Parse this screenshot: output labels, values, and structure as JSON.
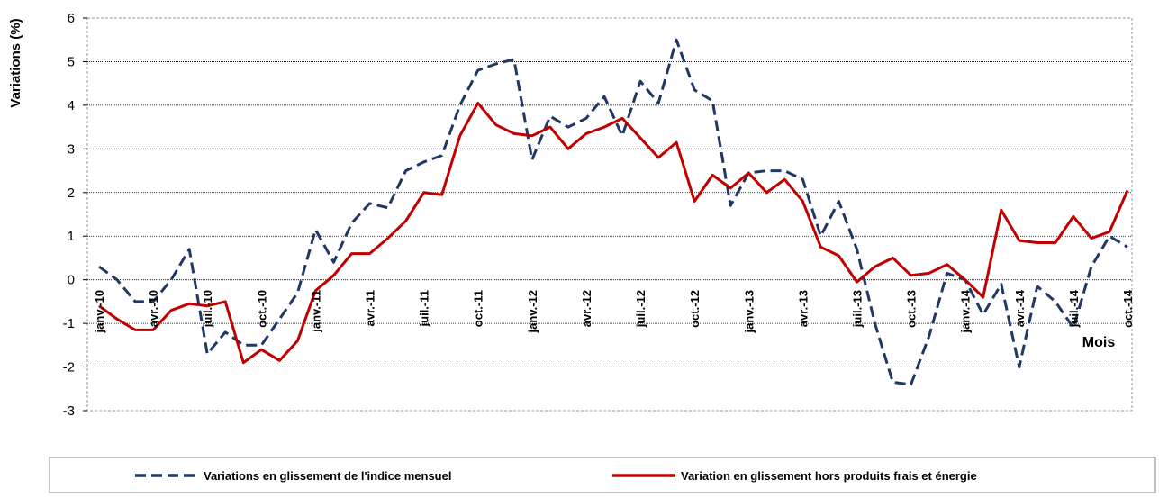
{
  "chart_data": {
    "type": "line",
    "y_label": "Variations (%)",
    "x_label": "Mois",
    "categories": [
      "janv.-10",
      null,
      null,
      "avr.-10",
      null,
      null,
      "juil.-10",
      null,
      null,
      "oct.-10",
      null,
      null,
      "janv.-11",
      null,
      null,
      "avr.-11",
      null,
      null,
      "juil.-11",
      null,
      null,
      "oct.-11",
      null,
      null,
      "janv.-12",
      null,
      null,
      "avr.-12",
      null,
      null,
      "juil.-12",
      null,
      null,
      "oct.-12",
      null,
      null,
      "janv.-13",
      null,
      null,
      "avr.-13",
      null,
      null,
      "juil.-13",
      null,
      null,
      "oct.-13",
      null,
      null,
      "janv.-14",
      null,
      null,
      "avr.-14",
      null,
      null,
      "juil.-14",
      null,
      null,
      "oct.-14"
    ],
    "series": [
      {
        "name": "Variations en glissement de l'indice mensuel",
        "color": "#1f3864",
        "dashed": true,
        "values": [
          0.3,
          0.0,
          -0.5,
          -0.5,
          0.0,
          0.7,
          -1.7,
          -1.2,
          -1.5,
          -1.5,
          -0.9,
          -0.3,
          1.15,
          0.4,
          1.3,
          1.75,
          1.65,
          2.5,
          2.7,
          2.85,
          4.0,
          4.8,
          4.95,
          5.05,
          2.75,
          3.75,
          3.5,
          3.7,
          4.2,
          3.3,
          4.55,
          4.05,
          5.5,
          4.35,
          4.1,
          1.7,
          2.45,
          2.5,
          2.5,
          2.3,
          1.0,
          1.8,
          0.7,
          -1.0,
          -2.35,
          -2.4,
          -1.3,
          0.15,
          0.0,
          -0.8,
          -0.1,
          -2.0,
          -0.15,
          -0.5,
          -1.1,
          0.3,
          1.0,
          0.75
        ]
      },
      {
        "name": "Variation en glissement hors produits frais et énergie",
        "color": "#c00000",
        "dashed": false,
        "values": [
          -0.6,
          -0.9,
          -1.15,
          -1.15,
          -0.7,
          -0.55,
          -0.6,
          -0.5,
          -1.9,
          -1.6,
          -1.85,
          -1.4,
          -0.25,
          0.1,
          0.6,
          0.6,
          0.95,
          1.35,
          2.0,
          1.95,
          3.3,
          4.05,
          3.55,
          3.35,
          3.3,
          3.5,
          3.0,
          3.35,
          3.5,
          3.7,
          3.25,
          2.8,
          3.15,
          1.8,
          2.4,
          2.1,
          2.45,
          2.0,
          2.3,
          1.8,
          0.75,
          0.55,
          -0.05,
          0.3,
          0.5,
          0.1,
          0.15,
          0.35,
          0.0,
          -0.4,
          1.6,
          0.9,
          0.85,
          0.85,
          1.45,
          0.95,
          1.1,
          2.05
        ]
      }
    ],
    "ylim": [
      -3,
      6
    ],
    "yticks": [
      -3,
      -2,
      -1,
      0,
      1,
      2,
      3,
      4,
      5,
      6
    ],
    "grid": true
  }
}
